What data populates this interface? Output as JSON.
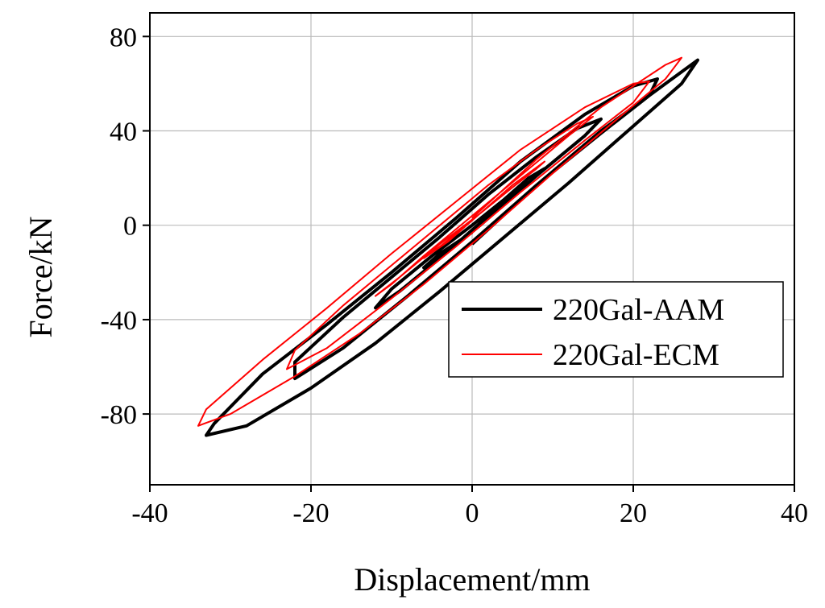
{
  "chart_data": {
    "type": "line",
    "title": "",
    "xlabel": "Displacement/mm",
    "ylabel": "Force/kN",
    "xlim": [
      -40,
      40
    ],
    "ylim": [
      -110,
      90
    ],
    "xticks": [
      -40,
      -20,
      0,
      20,
      40
    ],
    "yticks": [
      -80,
      -40,
      0,
      40,
      80
    ],
    "x_tick_labels": [
      "-40",
      "-20",
      "0",
      "20",
      "40"
    ],
    "y_tick_labels": [
      "-80",
      "-40",
      "0",
      "40",
      "80"
    ],
    "grid": true,
    "legend_position": "bottom-right",
    "series": [
      {
        "name": "220Gal-AAM",
        "color": "#000000",
        "x": [
          0,
          8,
          16,
          24,
          28,
          26,
          20,
          12,
          4,
          -4,
          -12,
          -20,
          -28,
          -33,
          -32,
          -26,
          -18,
          -10,
          -2,
          6,
          14,
          20,
          23,
          22,
          16,
          8,
          0,
          -8,
          -16,
          -22,
          -22,
          -16,
          -10,
          -4,
          2,
          8,
          13,
          16,
          14,
          8,
          2,
          -4,
          -9,
          -12,
          -10,
          -5,
          0,
          4,
          7,
          9,
          6,
          1,
          -3,
          -6,
          -4,
          0
        ],
        "y": [
          -8,
          17,
          40,
          60,
          70,
          60,
          42,
          18,
          -5,
          -28,
          -50,
          -69,
          -85,
          -89,
          -84,
          -63,
          -42,
          -20,
          3,
          27,
          47,
          59,
          62,
          55,
          39,
          17,
          -7,
          -30,
          -52,
          -65,
          -58,
          -39,
          -22,
          -5,
          13,
          29,
          41,
          45,
          38,
          21,
          4,
          -14,
          -28,
          -35,
          -27,
          -13,
          0,
          11,
          20,
          24,
          15,
          0,
          -11,
          -18,
          -12,
          -3
        ]
      },
      {
        "name": "220Gal-ECM",
        "color": "#ff0000",
        "x": [
          0,
          8,
          16,
          24,
          26,
          24,
          18,
          10,
          2,
          -6,
          -14,
          -22,
          -30,
          -34,
          -33,
          -26,
          -18,
          -10,
          -2,
          6,
          14,
          20,
          22,
          20,
          14,
          6,
          -2,
          -10,
          -18,
          -23,
          -22,
          -16,
          -10,
          -4,
          2,
          8,
          13,
          15,
          12,
          6,
          0,
          -6,
          -10,
          -12,
          -9,
          -4,
          1,
          5,
          8,
          9,
          5,
          0,
          -4,
          -6,
          -3,
          0
        ],
        "y": [
          3,
          28,
          50,
          68,
          71,
          62,
          45,
          22,
          -2,
          -25,
          -46,
          -64,
          -80,
          -85,
          -78,
          -57,
          -35,
          -12,
          10,
          32,
          50,
          60,
          61,
          52,
          36,
          14,
          -9,
          -31,
          -52,
          -61,
          -53,
          -34,
          -17,
          0,
          17,
          32,
          43,
          46,
          38,
          21,
          4,
          -13,
          -25,
          -30,
          -22,
          -8,
          5,
          16,
          24,
          27,
          17,
          2,
          -9,
          -14,
          -7,
          2
        ]
      }
    ]
  }
}
